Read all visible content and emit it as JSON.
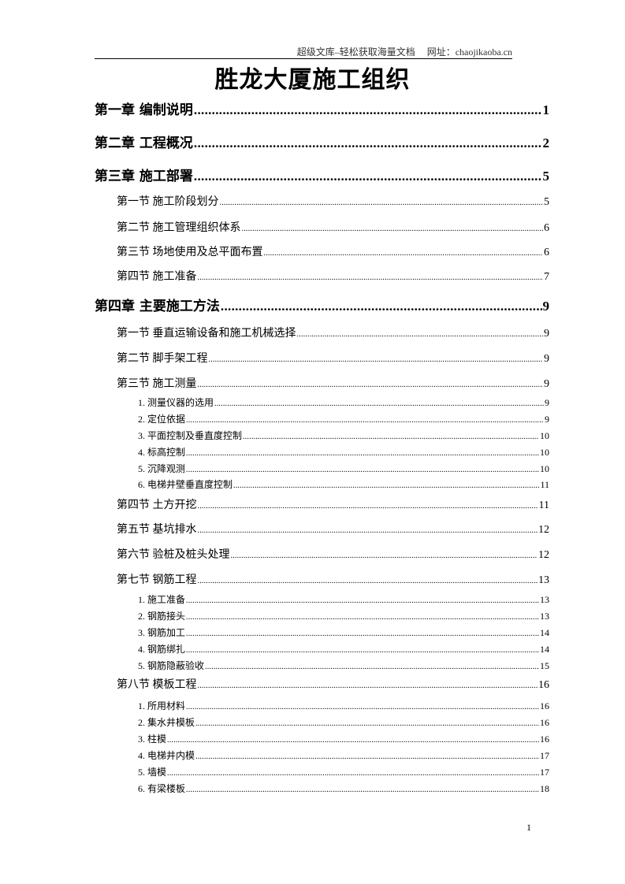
{
  "header": {
    "text": "超级文库–轻松获取海量文档     网址：chaojikaoba.cn"
  },
  "title": "胜龙大厦施工组织",
  "toc": [
    {
      "level": 1,
      "label": "第一章  编制说明",
      "page": "1"
    },
    {
      "level": 1,
      "label": "第二章  工程概况",
      "page": "2"
    },
    {
      "level": 1,
      "label": "第三章  施工部署",
      "page": "5"
    },
    {
      "level": 2,
      "label": "第一节  施工阶段划分",
      "page": "5"
    },
    {
      "level": 2,
      "label": "第二节  施工管理组织体系",
      "page": "6"
    },
    {
      "level": 2,
      "label": "第三节  场地使用及总平面布置",
      "page": "6"
    },
    {
      "level": 2,
      "label": "第四节  施工准备",
      "page": "7"
    },
    {
      "level": 1,
      "label": "第四章  主要施工方法",
      "page": "9"
    },
    {
      "level": 2,
      "label": "第一节  垂直运输设备和施工机械选择",
      "page": "9"
    },
    {
      "level": 2,
      "label": "第二节  脚手架工程",
      "page": "9"
    },
    {
      "level": 2,
      "label": "第三节  施工测量",
      "page": "9"
    },
    {
      "level": 3,
      "label": "1. 测量仪器的选用",
      "page": "9"
    },
    {
      "level": 3,
      "label": "2. 定位依据",
      "page": "9"
    },
    {
      "level": 3,
      "label": "3. 平面控制及垂直度控制",
      "page": "10"
    },
    {
      "level": 3,
      "label": "4. 标高控制",
      "page": "10"
    },
    {
      "level": 3,
      "label": "5. 沉降观测",
      "page": "10"
    },
    {
      "level": 3,
      "label": "6. 电梯井壁垂直度控制",
      "page": "11"
    },
    {
      "level": 2,
      "label": "第四节  土方开挖",
      "page": "11"
    },
    {
      "level": 2,
      "label": "第五节  基坑排水",
      "page": "12"
    },
    {
      "level": 2,
      "label": "第六节  验桩及桩头处理",
      "page": "12"
    },
    {
      "level": 2,
      "label": "第七节  钢筋工程",
      "page": "13"
    },
    {
      "level": 3,
      "label": "1. 施工准备",
      "page": "13"
    },
    {
      "level": 3,
      "label": "2. 钢筋接头",
      "page": "13"
    },
    {
      "level": 3,
      "label": "3. 钢筋加工",
      "page": "14"
    },
    {
      "level": 3,
      "label": "4. 钢筋绑扎",
      "page": "14"
    },
    {
      "level": 3,
      "label": "5. 钢筋隐蔽验收",
      "page": "15"
    },
    {
      "level": 2,
      "label": "第八节  模板工程",
      "page": "16"
    },
    {
      "level": 3,
      "label": "1. 所用材料",
      "page": "16"
    },
    {
      "level": 3,
      "label": "2. 集水井模板",
      "page": "16"
    },
    {
      "level": 3,
      "label": "3. 柱模",
      "page": "16"
    },
    {
      "level": 3,
      "label": "4. 电梯井内模",
      "page": "17"
    },
    {
      "level": 3,
      "label": "5. 墙模",
      "page": "17"
    },
    {
      "level": 3,
      "label": "6. 有梁楼板",
      "page": "18"
    }
  ],
  "page_number": "1"
}
